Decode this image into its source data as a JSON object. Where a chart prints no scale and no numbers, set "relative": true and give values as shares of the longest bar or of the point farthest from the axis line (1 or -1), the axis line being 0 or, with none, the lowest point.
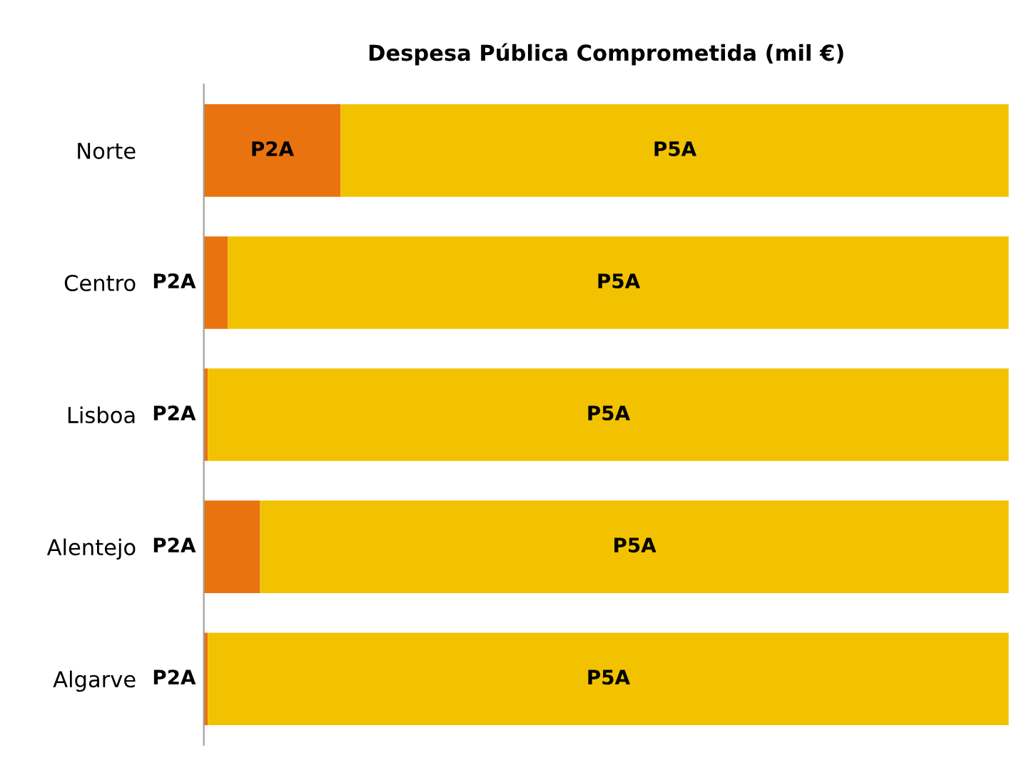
{
  "chart_data": {
    "type": "bar",
    "title": "Despesa Pública Comprometida (mil €)",
    "orientation": "horizontal",
    "stacked": true,
    "relative": true,
    "legend": false,
    "grid": false,
    "categories": [
      "Norte",
      "Centro",
      "Lisboa",
      "Alentejo",
      "Algarve"
    ],
    "series": [
      {
        "name": "P2A",
        "color": "#e8730f",
        "values": [
          0.17,
          0.03,
          0.005,
          0.07,
          0.005
        ]
      },
      {
        "name": "P5A",
        "color": "#f2c200",
        "values": [
          0.83,
          0.97,
          0.995,
          0.93,
          0.995
        ]
      }
    ]
  }
}
